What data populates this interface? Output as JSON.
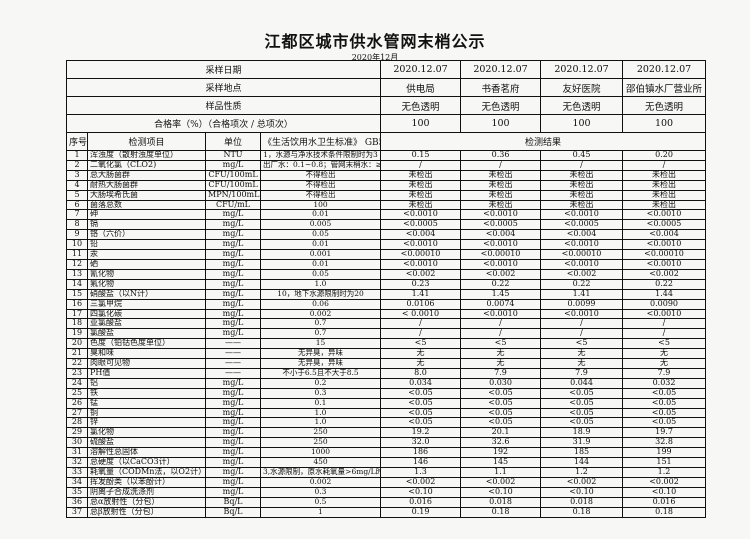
{
  "title": "江都区城市供水管网末梢公示",
  "subtitle": "2020年12月",
  "header_rows": [
    {
      "label": "采样日期",
      "values": [
        "2020.12.07",
        "2020.12.07",
        "2020.12.07",
        "2020.12.07"
      ]
    },
    {
      "label": "采样地点",
      "values": [
        "供电局",
        "书香茗府",
        "友好医院",
        "邵伯镇水厂营业所"
      ]
    },
    {
      "label": "样品性质",
      "values": [
        "无色透明",
        "无色透明",
        "无色透明",
        "无色透明"
      ]
    },
    {
      "label": "合格率（%）（合格项次 / 总项次）",
      "values": [
        "100",
        "100",
        "100",
        "100"
      ]
    }
  ],
  "columns": {
    "no": "序号",
    "item": "检测项目",
    "unit": "单位",
    "standard": "《生活饮用水卫生标准》 GB5749",
    "results": "检测结果"
  },
  "rows": [
    [
      "1",
      "浑浊度（散射浊度单位）",
      "NTU",
      "1，水源与净水技术条件限制时为3",
      "0.15",
      "0.36",
      "0.45",
      "0.20"
    ],
    [
      "2",
      "二氧化氯（CLO2)",
      "mg/L",
      "出厂水：0.1~0.8；管网末梢水：≥0.02",
      "/",
      "/",
      "/",
      "/"
    ],
    [
      "3",
      "总大肠菌群",
      "CFU/100mL",
      "不得检出",
      "未检出",
      "未检出",
      "未检出",
      "未检出"
    ],
    [
      "4",
      "耐热大肠菌群",
      "CFU/100mL",
      "不得检出",
      "未检出",
      "未检出",
      "未检出",
      "未检出"
    ],
    [
      "5",
      "大肠埃希氏菌",
      "MPN/100mL",
      "不得检出",
      "未检出",
      "未检出",
      "未检出",
      "未检出"
    ],
    [
      "6",
      "菌落总数",
      "CFU/mL",
      "100",
      "未检出",
      "未检出",
      "未检出",
      "未检出"
    ],
    [
      "7",
      "砷",
      "mg/L",
      "0.01",
      "<0.0010",
      "<0.0010",
      "<0.0010",
      "<0.0010"
    ],
    [
      "8",
      "镉",
      "mg/L",
      "0.005",
      "<0.0005",
      "<0.0005",
      "<0.0005",
      "<0.0005"
    ],
    [
      "9",
      "铬（六价）",
      "mg/L",
      "0.05",
      "<0.004",
      "<0.004",
      "<0.004",
      "<0.004"
    ],
    [
      "10",
      "铅",
      "mg/L",
      "0.01",
      "<0.0010",
      "<0.0010",
      "<0.0010",
      "<0.0010"
    ],
    [
      "11",
      "汞",
      "mg/L",
      "0.001",
      "<0.00010",
      "<0.00010",
      "<0.00010",
      "<0.00010"
    ],
    [
      "12",
      "硒",
      "mg/L",
      "0.01",
      "<0.0010",
      "<0.0010",
      "<0.0010",
      "<0.0010"
    ],
    [
      "13",
      "氰化物",
      "mg/L",
      "0.05",
      "<0.002",
      "<0.002",
      "<0.002",
      "<0.002"
    ],
    [
      "14",
      "氟化物",
      "mg/L",
      "1.0",
      "0.23",
      "0.22",
      "0.22",
      "0.22"
    ],
    [
      "15",
      "硝酸盐（以N计）",
      "mg/L",
      "10，地下水源限制时为20",
      "1.41",
      "1.45",
      "1.41",
      "1.44"
    ],
    [
      "16",
      "三氯甲烷",
      "mg/L",
      "0.06",
      "0.0106",
      "0.0074",
      "0.0099",
      "0.0090"
    ],
    [
      "17",
      "四氯化碳",
      "mg/L",
      "0.002",
      "< 0.0010",
      "<0.0010",
      "<0.0010",
      "<0.0010"
    ],
    [
      "18",
      "亚氯酸盐",
      "mg/L",
      "0.7",
      "/",
      "/",
      "/",
      "/"
    ],
    [
      "19",
      "氯酸盐",
      "mg/L",
      "0.7",
      "/",
      "/",
      "/",
      "/"
    ],
    [
      "20",
      "色度（铂钴色度单位）",
      "——",
      "15",
      "<5",
      "<5",
      "<5",
      "<5"
    ],
    [
      "21",
      "臭和味",
      "——",
      "无异臭，异味",
      "无",
      "无",
      "无",
      "无"
    ],
    [
      "22",
      "肉眼可见物",
      "——",
      "无异臭，异味",
      "无",
      "无",
      "无",
      "无"
    ],
    [
      "23",
      "PH值",
      "——",
      "不小于6.5且不大于8.5",
      "8.0",
      "7.9",
      "7.9",
      "7.9"
    ],
    [
      "24",
      "铝",
      "mg/L",
      "0.2",
      "0.034",
      "0.030",
      "0.044",
      "0.032"
    ],
    [
      "25",
      "铁",
      "mg/L",
      "0.3",
      "<0.05",
      "<0.05",
      "<0.05",
      "<0.05"
    ],
    [
      "26",
      "锰",
      "mg/L",
      "0.1",
      "<0.05",
      "<0.05",
      "<0.05",
      "<0.05"
    ],
    [
      "27",
      "铜",
      "mg/L",
      "1.0",
      "<0.05",
      "<0.05",
      "<0.05",
      "<0.05"
    ],
    [
      "28",
      "锌",
      "mg/L",
      "1.0",
      "<0.05",
      "<0.05",
      "<0.05",
      "<0.05"
    ],
    [
      "29",
      "氯化物",
      "mg/L",
      "250",
      "19.2",
      "20.1",
      "18.9",
      "19.7"
    ],
    [
      "30",
      "硫酸盐",
      "mg/L",
      "250",
      "32.0",
      "32.6",
      "31.9",
      "32.8"
    ],
    [
      "31",
      "溶解性总固体",
      "mg/L",
      "1000",
      "186",
      "192",
      "185",
      "199"
    ],
    [
      "32",
      "总硬度（以CaCO3计）",
      "mg/L",
      "450",
      "146",
      "145",
      "144",
      "151"
    ],
    [
      "33",
      "耗氧量（CODMn法，以O2计）",
      "mg/L",
      "3,水源限制，原水耗氧量>6mg/L时为5",
      "1.3",
      "1.1",
      "1.2",
      "1.2"
    ],
    [
      "34",
      "挥发酚类（以苯酚计）",
      "mg/L",
      "0.002",
      "<0.002",
      "<0.002",
      "<0.002",
      "<0.002"
    ],
    [
      "35",
      "阴离子合成洗涤剂",
      "mg/L",
      "0.3",
      "<0.10",
      "<0.10",
      "<0.10",
      "<0.10"
    ],
    [
      "36",
      "总α放射性（分包）",
      "Bq/L",
      "0.5",
      "0.016",
      "0.018",
      "0.018",
      "0.016"
    ],
    [
      "37",
      "总β放射性（分包）",
      "Bq/L",
      "1",
      "0.19",
      "0.18",
      "0.18",
      "0.18"
    ]
  ]
}
